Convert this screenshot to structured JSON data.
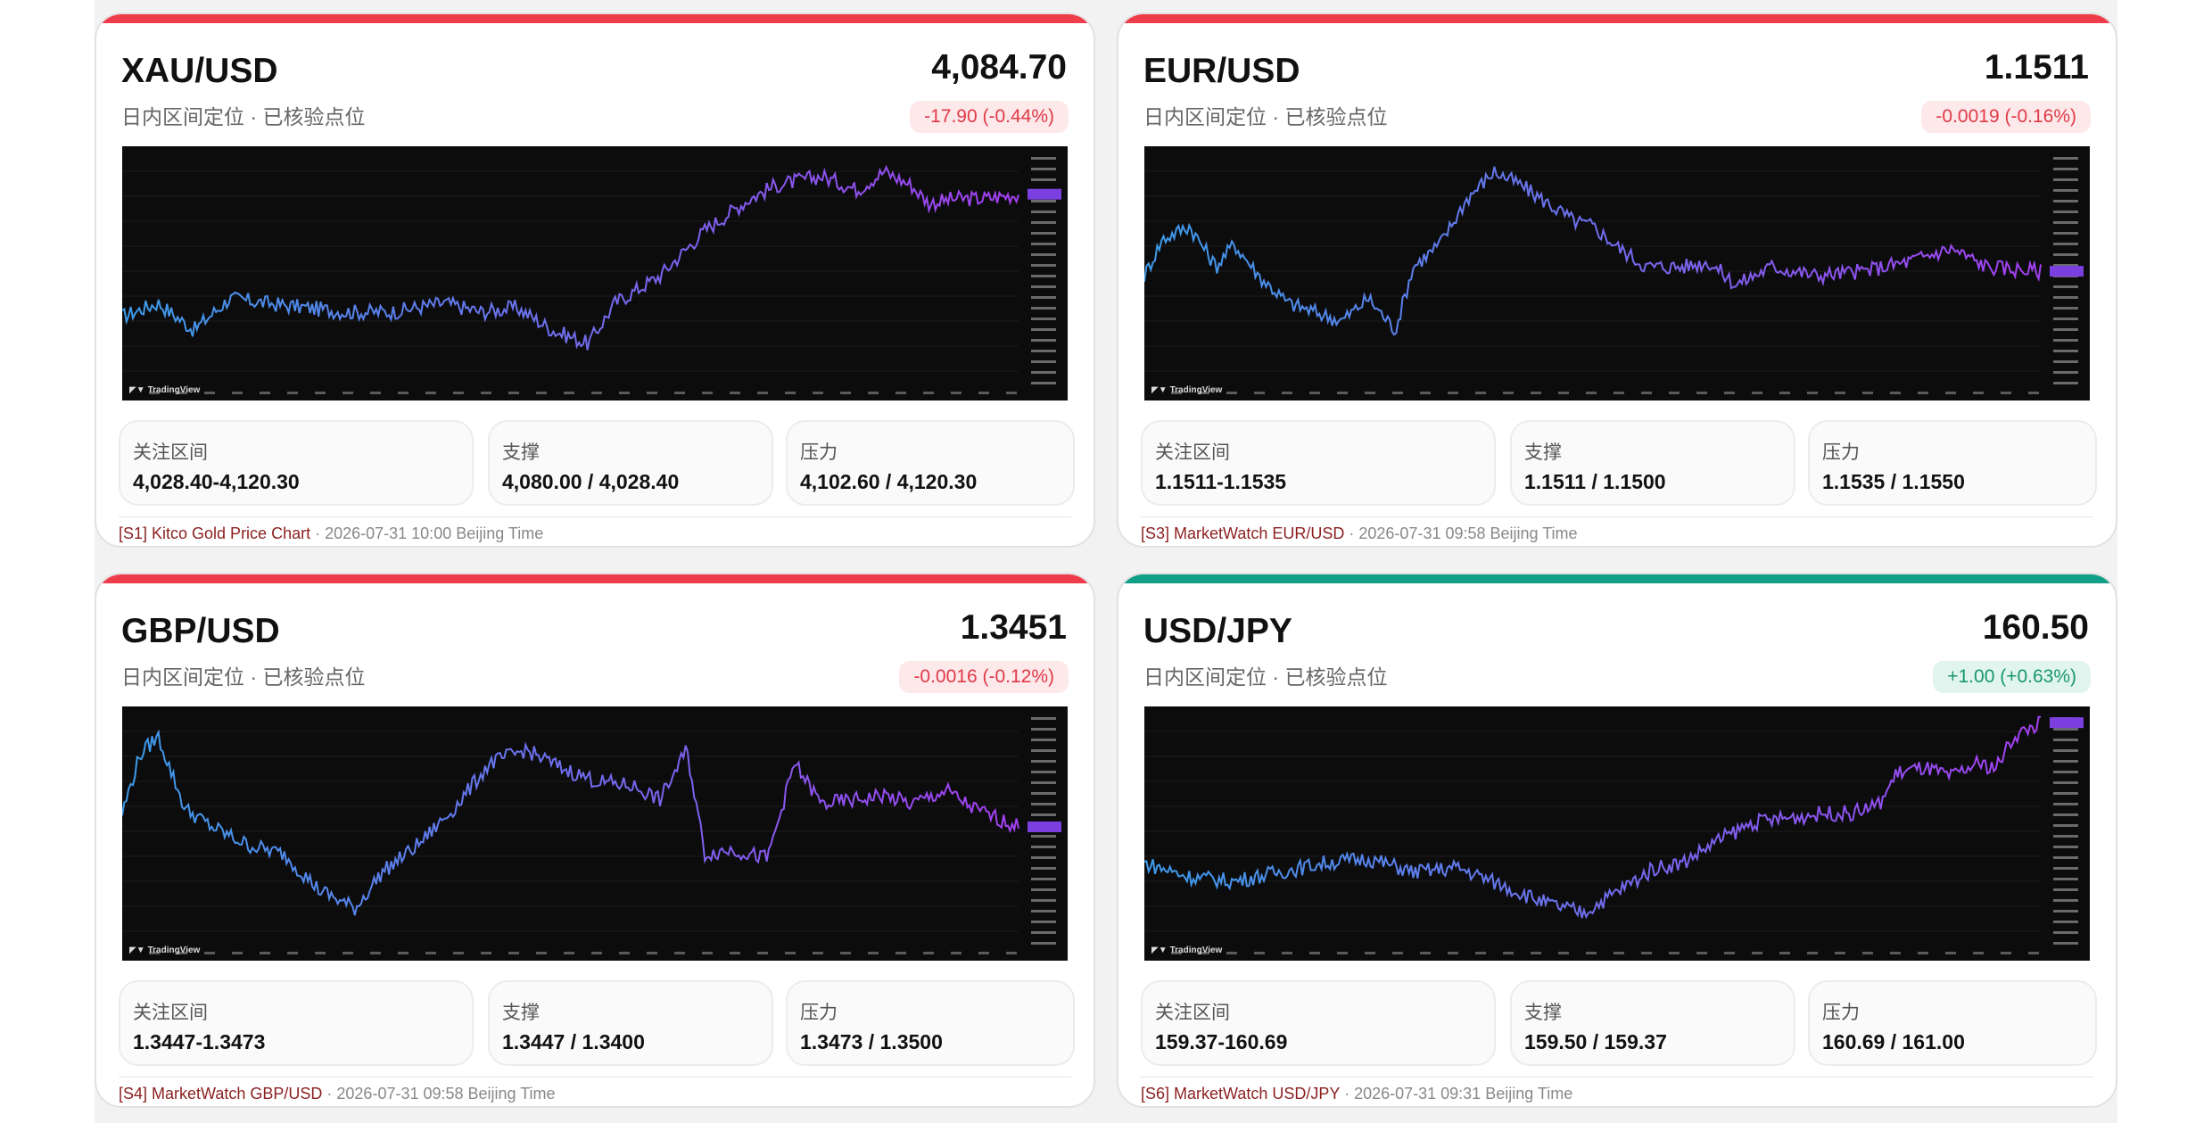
{
  "cards": [
    {
      "symbol": "XAU/USD",
      "subtitle": "日内区间定位 · 已核验点位",
      "price": "4,084.70",
      "change": "-17.90 (-0.44%)",
      "direction": "down",
      "chart_watermark": "TradingView",
      "chart_trend": "low-left, rising mid, plateau high right",
      "zones": [
        {
          "label": "关注区间",
          "value": "4,028.40-4,120.30"
        },
        {
          "label": "支撑",
          "value": "4,080.00 / 4,028.40"
        },
        {
          "label": "压力",
          "value": "4,102.60 / 4,120.30"
        }
      ],
      "source": "[S1] Kitco Gold Price Chart",
      "timestamp": " · 2026-07-31 10:00 Beijing Time"
    },
    {
      "symbol": "EUR/USD",
      "subtitle": "日内区间定位 · 已核验点位",
      "price": "1.1511",
      "change": "-0.0019 (-0.16%)",
      "direction": "down",
      "chart_watermark": "TradingView",
      "chart_trend": "dip, sharp rally to peak, then decline",
      "zones": [
        {
          "label": "关注区间",
          "value": "1.1511-1.1535"
        },
        {
          "label": "支撑",
          "value": "1.1511 / 1.1500"
        },
        {
          "label": "压力",
          "value": "1.1535 / 1.1550"
        }
      ],
      "source": "[S3] MarketWatch EUR/USD",
      "timestamp": " · 2026-07-31 09:58 Beijing Time"
    },
    {
      "symbol": "GBP/USD",
      "subtitle": "日内区间定位 · 已核验点位",
      "price": "1.3451",
      "change": "-0.0016 (-0.12%)",
      "direction": "down",
      "chart_watermark": "TradingView",
      "chart_trend": "early spike, drop to low, recovery, choppy",
      "zones": [
        {
          "label": "关注区间",
          "value": "1.3447-1.3473"
        },
        {
          "label": "支撑",
          "value": "1.3447 / 1.3400"
        },
        {
          "label": "压力",
          "value": "1.3473 / 1.3500"
        }
      ],
      "source": "[S4] MarketWatch GBP/USD",
      "timestamp": " · 2026-07-31 09:58 Beijing Time"
    },
    {
      "symbol": "USD/JPY",
      "subtitle": "日内区间定位 · 已核验点位",
      "price": "160.50",
      "change": "+1.00 (+0.63%)",
      "direction": "up",
      "chart_watermark": "TradingView",
      "chart_trend": "flat low, gradual rise, step up, spike at end",
      "zones": [
        {
          "label": "关注区间",
          "value": "159.37-160.69"
        },
        {
          "label": "支撑",
          "value": "159.50 / 159.37"
        },
        {
          "label": "压力",
          "value": "160.69 / 161.00"
        }
      ],
      "source": "[S6] MarketWatch USD/JPY",
      "timestamp": " · 2026-07-31 09:31 Beijing Time"
    }
  ],
  "colors": {
    "down": "#ef3c4a",
    "up": "#119f87",
    "line_start": "#3d9be9",
    "line_end": "#a33ff0"
  }
}
